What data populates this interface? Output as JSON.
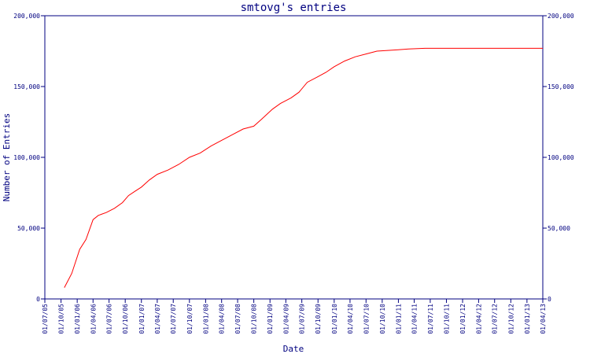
{
  "chart_data": {
    "type": "line",
    "title": "smtovg's entries",
    "xlabel": "Date",
    "ylabel": "Number of Entries",
    "ylim": [
      0,
      200000
    ],
    "yticks": [
      0,
      50000,
      100000,
      150000,
      200000
    ],
    "ytick_labels": [
      "0",
      "50,000",
      "100,000",
      "150,000",
      "200,000"
    ],
    "right_ytick_labels": [
      "0",
      "50,000",
      "100,000",
      "150,000",
      "200,000"
    ],
    "xticks": [
      "01/07/05",
      "01/10/05",
      "01/01/06",
      "01/04/06",
      "01/07/06",
      "01/10/06",
      "01/01/07",
      "01/04/07",
      "01/07/07",
      "01/10/07",
      "01/01/08",
      "01/04/08",
      "01/07/08",
      "01/10/08",
      "01/01/09",
      "01/04/09",
      "01/07/09",
      "01/10/09",
      "01/01/10",
      "01/04/10",
      "01/07/10",
      "01/10/10",
      "01/01/11",
      "01/04/11",
      "01/07/11",
      "01/10/11",
      "01/01/12",
      "01/04/12",
      "01/07/12",
      "01/10/12",
      "01/01/13",
      "01/04/13"
    ],
    "grid": false,
    "colors": {
      "axis": "#000080",
      "line": "#ff0000",
      "background": "#ffffff"
    },
    "series": [
      {
        "x": [
          "2005-10-20",
          "2005-12-01",
          "2006-01-15",
          "2006-02-20",
          "2006-04-01",
          "2006-05-01",
          "2006-06-15",
          "2006-08-01",
          "2006-09-15",
          "2006-10-20",
          "2006-11-25",
          "2007-01-01",
          "2007-02-15",
          "2007-04-01",
          "2007-06-01",
          "2007-08-01",
          "2007-10-01",
          "2007-12-01",
          "2008-02-01",
          "2008-04-01",
          "2008-06-01",
          "2008-08-01",
          "2008-10-01",
          "2008-11-15",
          "2009-01-15",
          "2009-03-01",
          "2009-05-01",
          "2009-06-15",
          "2009-08-01",
          "2009-10-01",
          "2009-11-15",
          "2010-01-01",
          "2010-03-01",
          "2010-05-01",
          "2010-07-01",
          "2010-09-01",
          "2010-11-01",
          "2011-01-01",
          "2011-03-01",
          "2011-06-01",
          "2011-09-01",
          "2011-11-01",
          "2012-01-01",
          "2012-04-01",
          "2012-07-01",
          "2012-10-01",
          "2013-01-01",
          "2013-04-01"
        ],
        "values": [
          8000,
          18000,
          35000,
          42000,
          56000,
          59000,
          61000,
          64000,
          68000,
          73000,
          76000,
          79000,
          84000,
          88000,
          91000,
          95000,
          100000,
          103000,
          108000,
          112000,
          116000,
          120000,
          122000,
          127000,
          134000,
          138000,
          142000,
          146000,
          153000,
          157000,
          160000,
          164000,
          168000,
          171000,
          173000,
          175000,
          175500,
          176000,
          176500,
          177000,
          177000,
          177000,
          177000,
          177000,
          177000,
          177000,
          177000,
          177000
        ]
      }
    ]
  }
}
